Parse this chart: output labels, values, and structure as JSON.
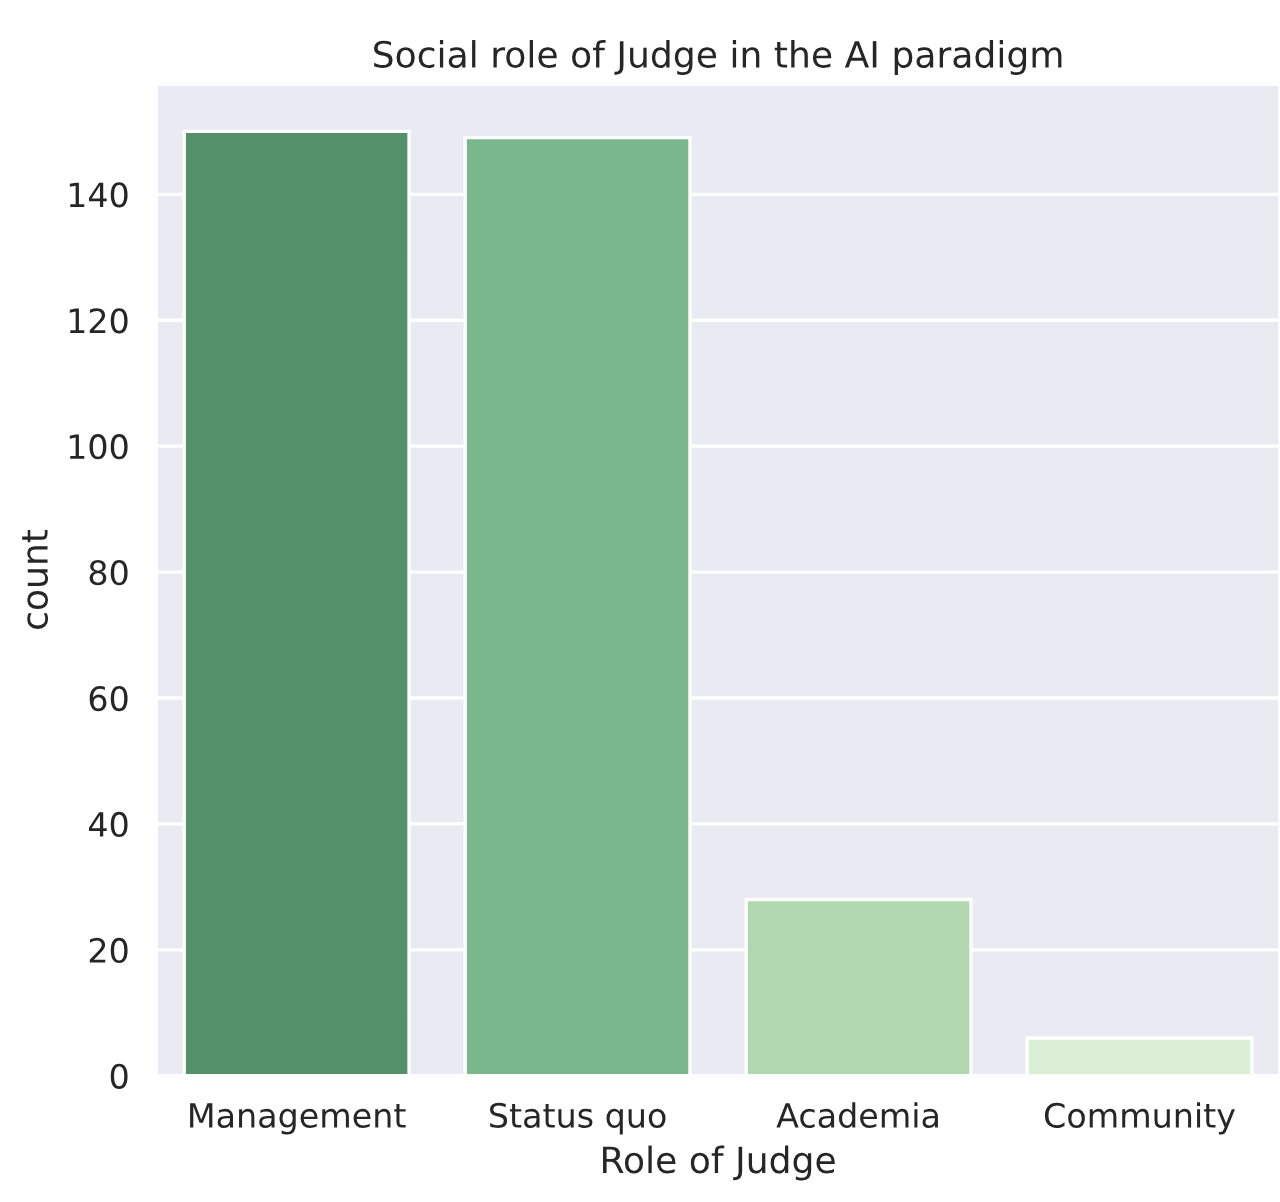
{
  "chart_data": {
    "type": "bar",
    "title": "Social role of Judge in the AI paradigm",
    "xlabel": "Role of Judge",
    "ylabel": "count",
    "categories": [
      "Management",
      "Status quo",
      "Academia",
      "Community"
    ],
    "values": [
      150,
      149,
      28,
      6
    ],
    "colors": [
      "#54906a",
      "#7bb78c",
      "#b1d7b0",
      "#dbeed6"
    ],
    "ylim": [
      0,
      157.5
    ],
    "yticks": [
      0,
      20,
      40,
      60,
      80,
      100,
      120,
      140
    ],
    "grid": "y"
  }
}
